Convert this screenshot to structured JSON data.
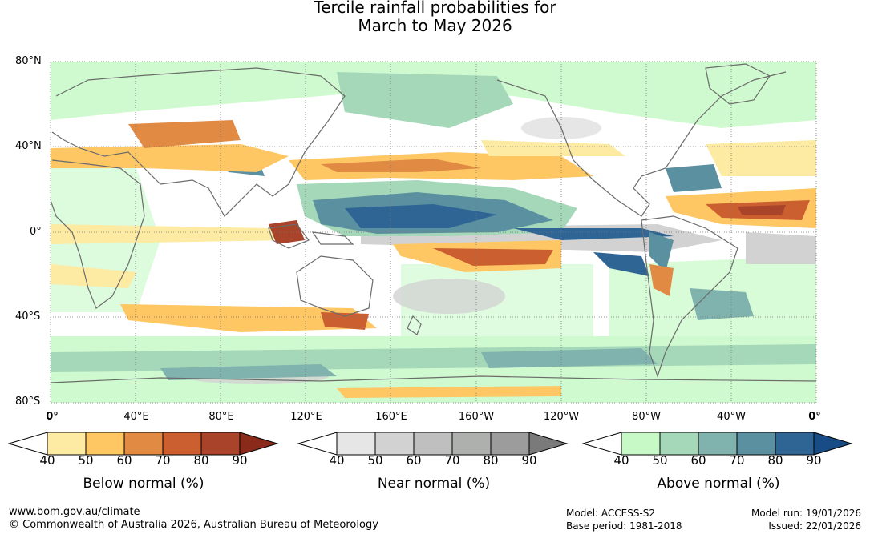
{
  "title_line1": "Tercile rainfall probabilities for",
  "title_line2": "March to May 2026",
  "lat_labels": [
    "80°N",
    "40°N",
    "0°",
    "40°S",
    "80°S"
  ],
  "lon_labels": [
    "0°",
    "40°E",
    "80°E",
    "120°E",
    "160°E",
    "160°W",
    "120°W",
    "80°W",
    "40°W",
    "0°"
  ],
  "colorbars": [
    {
      "title": "Below normal (%)",
      "ticks": [
        "40",
        "50",
        "60",
        "70",
        "80",
        "90"
      ],
      "colors": [
        "#ffffff",
        "#fdeba3",
        "#fec763",
        "#e08a44",
        "#cb5f30",
        "#a9442a",
        "#8a2a1a"
      ]
    },
    {
      "title": "Near normal (%)",
      "ticks": [
        "40",
        "50",
        "60",
        "70",
        "80",
        "90"
      ],
      "colors": [
        "#ffffff",
        "#e6e6e6",
        "#d2d2d2",
        "#bfbfbf",
        "#aeb0ae",
        "#9c9c9c",
        "#7a7a7a"
      ]
    },
    {
      "title": "Above normal (%)",
      "ticks": [
        "40",
        "50",
        "60",
        "70",
        "80",
        "90"
      ],
      "colors": [
        "#ffffff",
        "#c7f9c7",
        "#a5d8b9",
        "#80b3ad",
        "#5a90a0",
        "#2e6595",
        "#174c86"
      ]
    }
  ],
  "footer": {
    "url": "www.bom.gov.au/climate",
    "copyright": "© Commonwealth of Australia 2026, Australian Bureau of Meteorology",
    "model": "Model: ACCESS-S2",
    "base_period": "Base period: 1981-2018",
    "model_run": "Model run: 19/01/2026",
    "issued": "Issued: 22/01/2026"
  }
}
